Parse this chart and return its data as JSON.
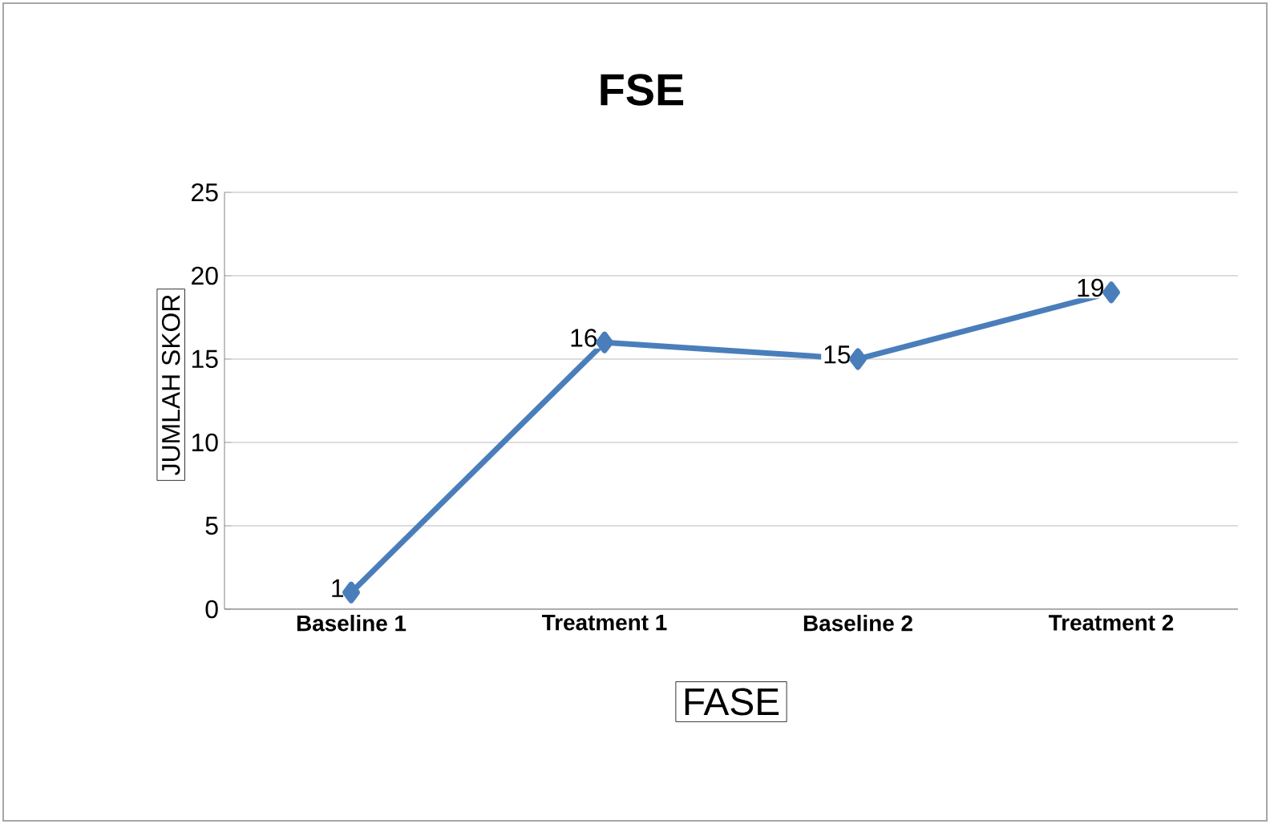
{
  "chart_data": {
    "type": "line",
    "title": "FSE",
    "xlabel": "FASE",
    "ylabel": "JUMLAH SKOR",
    "categories": [
      "Baseline 1",
      "Treatment 1",
      "Baseline 2",
      "Treatment 2"
    ],
    "series": [
      {
        "color": "#4a7ebb",
        "values": [
          1,
          16,
          15,
          19
        ]
      }
    ],
    "ylim": [
      0,
      25
    ],
    "yticks": [
      0,
      5,
      10,
      15,
      20,
      25
    ],
    "grid": "y",
    "marker": "diamond",
    "data_labels": true
  }
}
